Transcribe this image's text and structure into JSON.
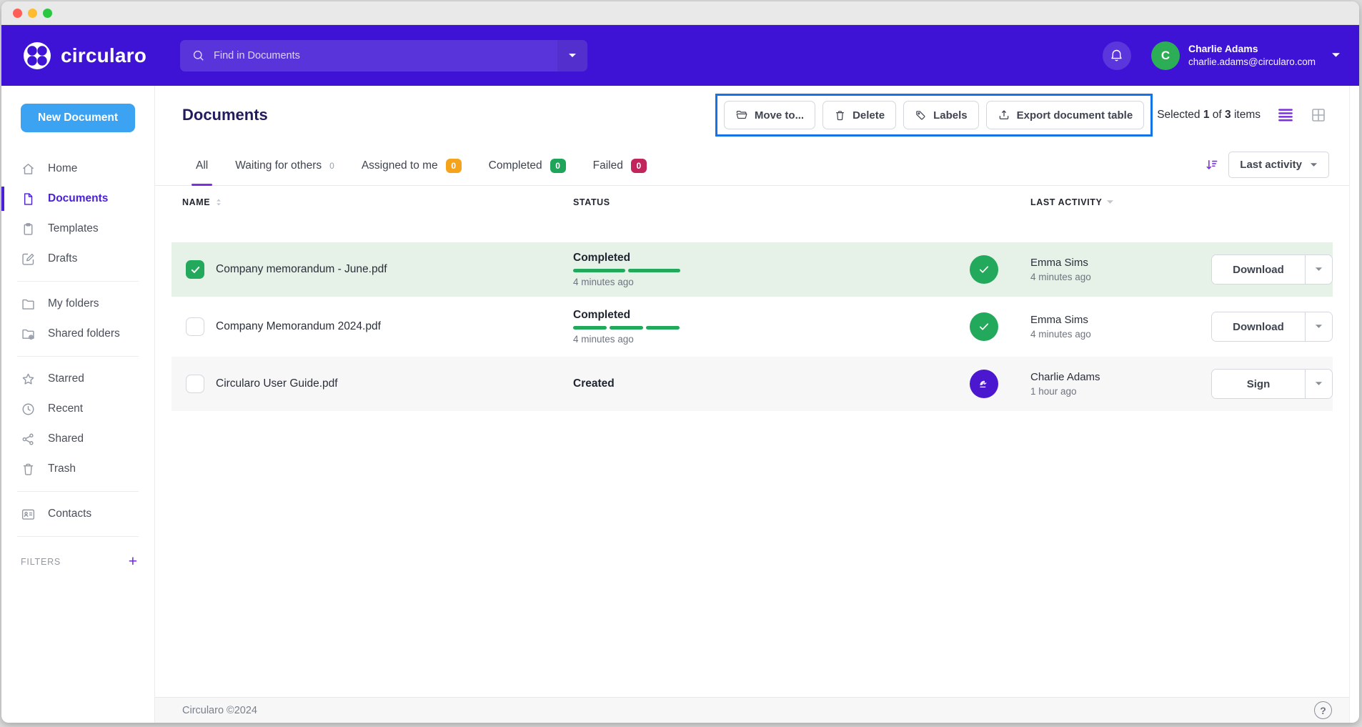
{
  "header": {
    "logo_text": "circularo",
    "search": {
      "placeholder": "Find in Documents"
    },
    "user": {
      "initial": "C",
      "name": "Charlie Adams",
      "email": "charlie.adams@circularo.com"
    }
  },
  "sidebar": {
    "new_document_label": "New Document",
    "groups": [
      {
        "items": [
          {
            "label": "Home",
            "icon": "home-icon"
          },
          {
            "label": "Documents",
            "icon": "document-icon",
            "active": true
          },
          {
            "label": "Templates",
            "icon": "clipboard-icon"
          },
          {
            "label": "Drafts",
            "icon": "edit-icon"
          }
        ]
      },
      {
        "items": [
          {
            "label": "My folders",
            "icon": "folder-icon"
          },
          {
            "label": "Shared folders",
            "icon": "shared-folder-icon"
          }
        ]
      },
      {
        "items": [
          {
            "label": "Starred",
            "icon": "star-icon"
          },
          {
            "label": "Recent",
            "icon": "clock-icon"
          },
          {
            "label": "Shared",
            "icon": "share-icon"
          },
          {
            "label": "Trash",
            "icon": "trash-icon"
          }
        ]
      },
      {
        "items": [
          {
            "label": "Contacts",
            "icon": "contacts-icon"
          }
        ]
      }
    ],
    "filters": {
      "label": "FILTERS",
      "add_label": "+"
    }
  },
  "main": {
    "title": "Documents",
    "toolbar": {
      "buttons": [
        {
          "label": "Move to...",
          "icon": "folder-open-icon"
        },
        {
          "label": "Delete",
          "icon": "trash-icon"
        },
        {
          "label": "Labels",
          "icon": "tag-icon"
        },
        {
          "label": "Export document table",
          "icon": "export-icon"
        }
      ],
      "highlight_color": "#1473E6"
    },
    "selection": {
      "prefix": "Selected",
      "selected": "1",
      "middle": "of",
      "total": "3",
      "suffix": "items"
    },
    "tabs": [
      {
        "label": "All",
        "active": true
      },
      {
        "label": "Waiting for others",
        "count": "0",
        "badge": "none"
      },
      {
        "label": "Assigned to me",
        "count": "0",
        "badge": "orange"
      },
      {
        "label": "Completed",
        "count": "0",
        "badge": "green"
      },
      {
        "label": "Failed",
        "count": "0",
        "badge": "red"
      }
    ],
    "sort": {
      "label": "Last activity"
    },
    "table": {
      "columns": [
        "NAME",
        "STATUS",
        "LAST ACTIVITY"
      ],
      "rows": [
        {
          "name": "Company memorandum - June.pdf",
          "checked": true,
          "status": "Completed",
          "status_time": "4 minutes ago",
          "progress_segments": 2,
          "avatar": "check-avatar",
          "actor": "Emma Sims",
          "activity_time": "4 minutes ago",
          "action": "Download"
        },
        {
          "name": "Company Memorandum 2024.pdf",
          "checked": false,
          "status": "Completed",
          "status_time": "4 minutes ago",
          "progress_segments": 3,
          "avatar": "check-avatar",
          "actor": "Emma Sims",
          "activity_time": "4 minutes ago",
          "action": "Download"
        },
        {
          "name": "Circularo User Guide.pdf",
          "checked": false,
          "status": "Created",
          "status_time": "",
          "progress_segments": 0,
          "avatar": "signature-avatar",
          "actor": "Charlie Adams",
          "activity_time": "1 hour ago",
          "action": "Sign"
        }
      ]
    },
    "footer": {
      "copyright": "Circularo ©2024",
      "help_label": "?"
    }
  },
  "colors": {
    "header_purple": "#3E13D6",
    "accent_blue": "#3BA3F2",
    "active_purple": "#4A1FD9",
    "highlight_blue": "#1473E6",
    "green": "#22A95C",
    "orange": "#F5A31A",
    "red": "#C2255C",
    "selected_row": "#E6F1E8",
    "title_navy": "#221C5E"
  }
}
